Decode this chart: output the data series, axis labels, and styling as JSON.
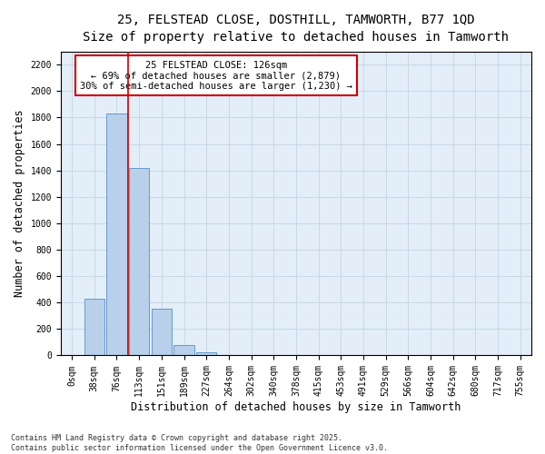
{
  "title_line1": "25, FELSTEAD CLOSE, DOSTHILL, TAMWORTH, B77 1QD",
  "title_line2": "Size of property relative to detached houses in Tamworth",
  "xlabel": "Distribution of detached houses by size in Tamworth",
  "ylabel": "Number of detached properties",
  "bar_labels": [
    "0sqm",
    "38sqm",
    "76sqm",
    "113sqm",
    "151sqm",
    "189sqm",
    "227sqm",
    "264sqm",
    "302sqm",
    "340sqm",
    "378sqm",
    "415sqm",
    "453sqm",
    "491sqm",
    "529sqm",
    "566sqm",
    "604sqm",
    "642sqm",
    "680sqm",
    "717sqm",
    "755sqm"
  ],
  "bar_values": [
    5,
    430,
    1830,
    1420,
    355,
    78,
    25,
    5,
    0,
    0,
    0,
    0,
    0,
    0,
    0,
    0,
    0,
    0,
    0,
    0,
    0
  ],
  "bar_color": "#b8d0ea",
  "bar_edgecolor": "#6699cc",
  "vline_color": "#cc0000",
  "annotation_text": "25 FELSTEAD CLOSE: 126sqm\n← 69% of detached houses are smaller (2,879)\n30% of semi-detached houses are larger (1,230) →",
  "annotation_box_facecolor": "white",
  "annotation_box_edgecolor": "#cc0000",
  "ylim": [
    0,
    2300
  ],
  "yticks": [
    0,
    200,
    400,
    600,
    800,
    1000,
    1200,
    1400,
    1600,
    1800,
    2000,
    2200
  ],
  "grid_color": "#c8d8e8",
  "background_color": "#e4eef8",
  "footnote": "Contains HM Land Registry data © Crown copyright and database right 2025.\nContains public sector information licensed under the Open Government Licence v3.0.",
  "title_fontsize": 10,
  "subtitle_fontsize": 9,
  "axis_label_fontsize": 8.5,
  "tick_fontsize": 7,
  "annotation_fontsize": 7.5,
  "footnote_fontsize": 6
}
